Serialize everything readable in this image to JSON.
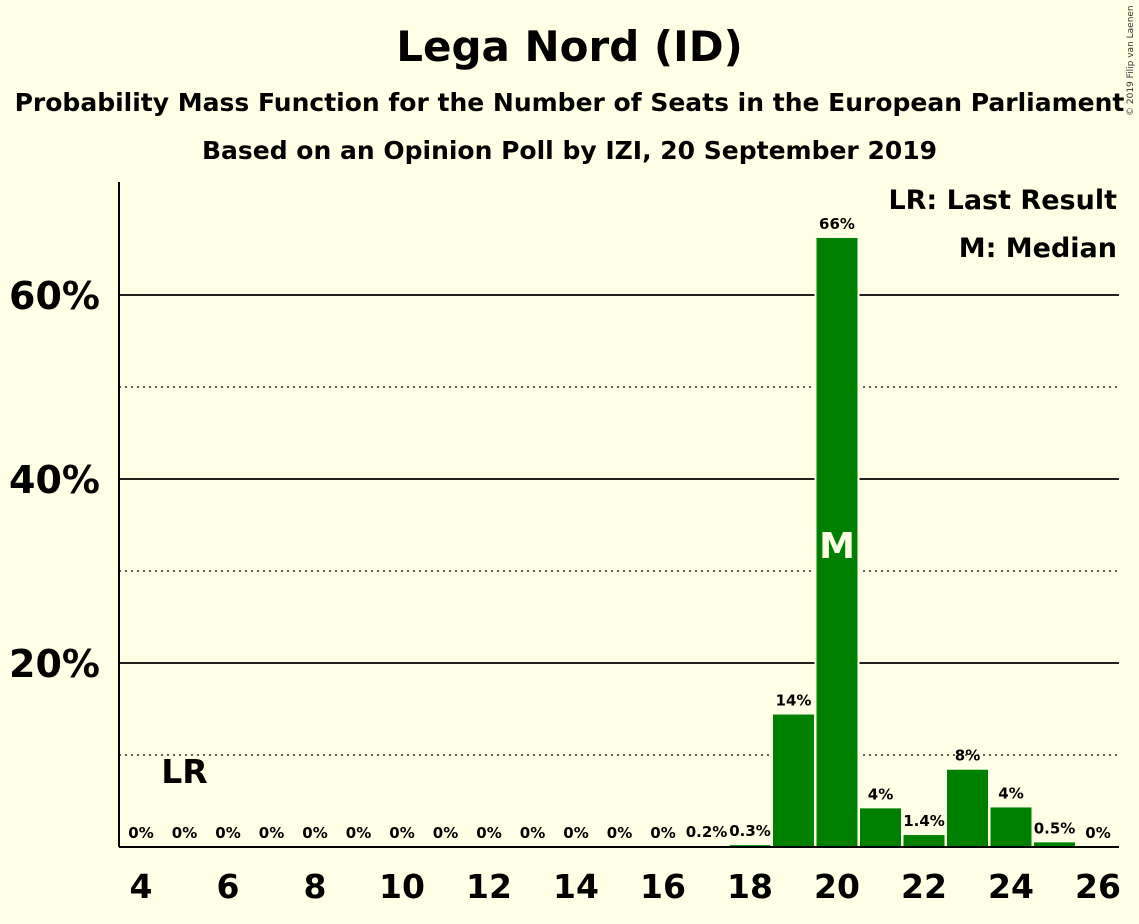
{
  "title": "Lega Nord (ID)",
  "subtitle": "Probability Mass Function for the Number of Seats in the European Parliament",
  "subtitle2": "Based on an Opinion Poll by IZI, 20 September 2019",
  "copyright": "© 2019 Filip van Laenen",
  "legend": {
    "last_result": "LR: Last Result",
    "median": "M: Median"
  },
  "colors": {
    "background": "#ffffe6",
    "bar": "#008000",
    "text": "#000000"
  },
  "chart_data": {
    "type": "bar",
    "title": "Lega Nord (ID)",
    "x": [
      4,
      5,
      6,
      7,
      8,
      9,
      10,
      11,
      12,
      13,
      14,
      15,
      16,
      17,
      18,
      19,
      20,
      21,
      22,
      23,
      24,
      25,
      26
    ],
    "values": [
      0,
      0,
      0,
      0,
      0,
      0,
      0,
      0,
      0,
      0,
      0,
      0,
      0,
      0.2,
      0.3,
      14,
      66,
      4,
      1.4,
      8,
      4,
      0.5,
      0
    ],
    "labels": [
      "0%",
      "0%",
      "0%",
      "0%",
      "0%",
      "0%",
      "0%",
      "0%",
      "0%",
      "0%",
      "0%",
      "0%",
      "0%",
      "0.2%",
      "0.3%",
      "14%",
      "66%",
      "4%",
      "1.4%",
      "8%",
      "4%",
      "0.5%",
      "0%"
    ],
    "bar_values_estimated": [
      0,
      0,
      0,
      0,
      0,
      0,
      0,
      0,
      0,
      0,
      0,
      0,
      0,
      0.1,
      0.2,
      14.4,
      66.2,
      4.2,
      1.3,
      8.4,
      4.3,
      0.5,
      0
    ],
    "x_ticks": [
      "4",
      "6",
      "8",
      "10",
      "12",
      "14",
      "16",
      "18",
      "20",
      "22",
      "24",
      "26"
    ],
    "y_ticks": [
      "20%",
      "40%",
      "60%"
    ],
    "ylim": [
      0,
      72
    ],
    "grid": "major solid at 20/40/60, minor dotted at 10/30/50",
    "last_result": {
      "x": 5,
      "label": "LR"
    },
    "median": {
      "x": 20,
      "label": "M"
    }
  }
}
